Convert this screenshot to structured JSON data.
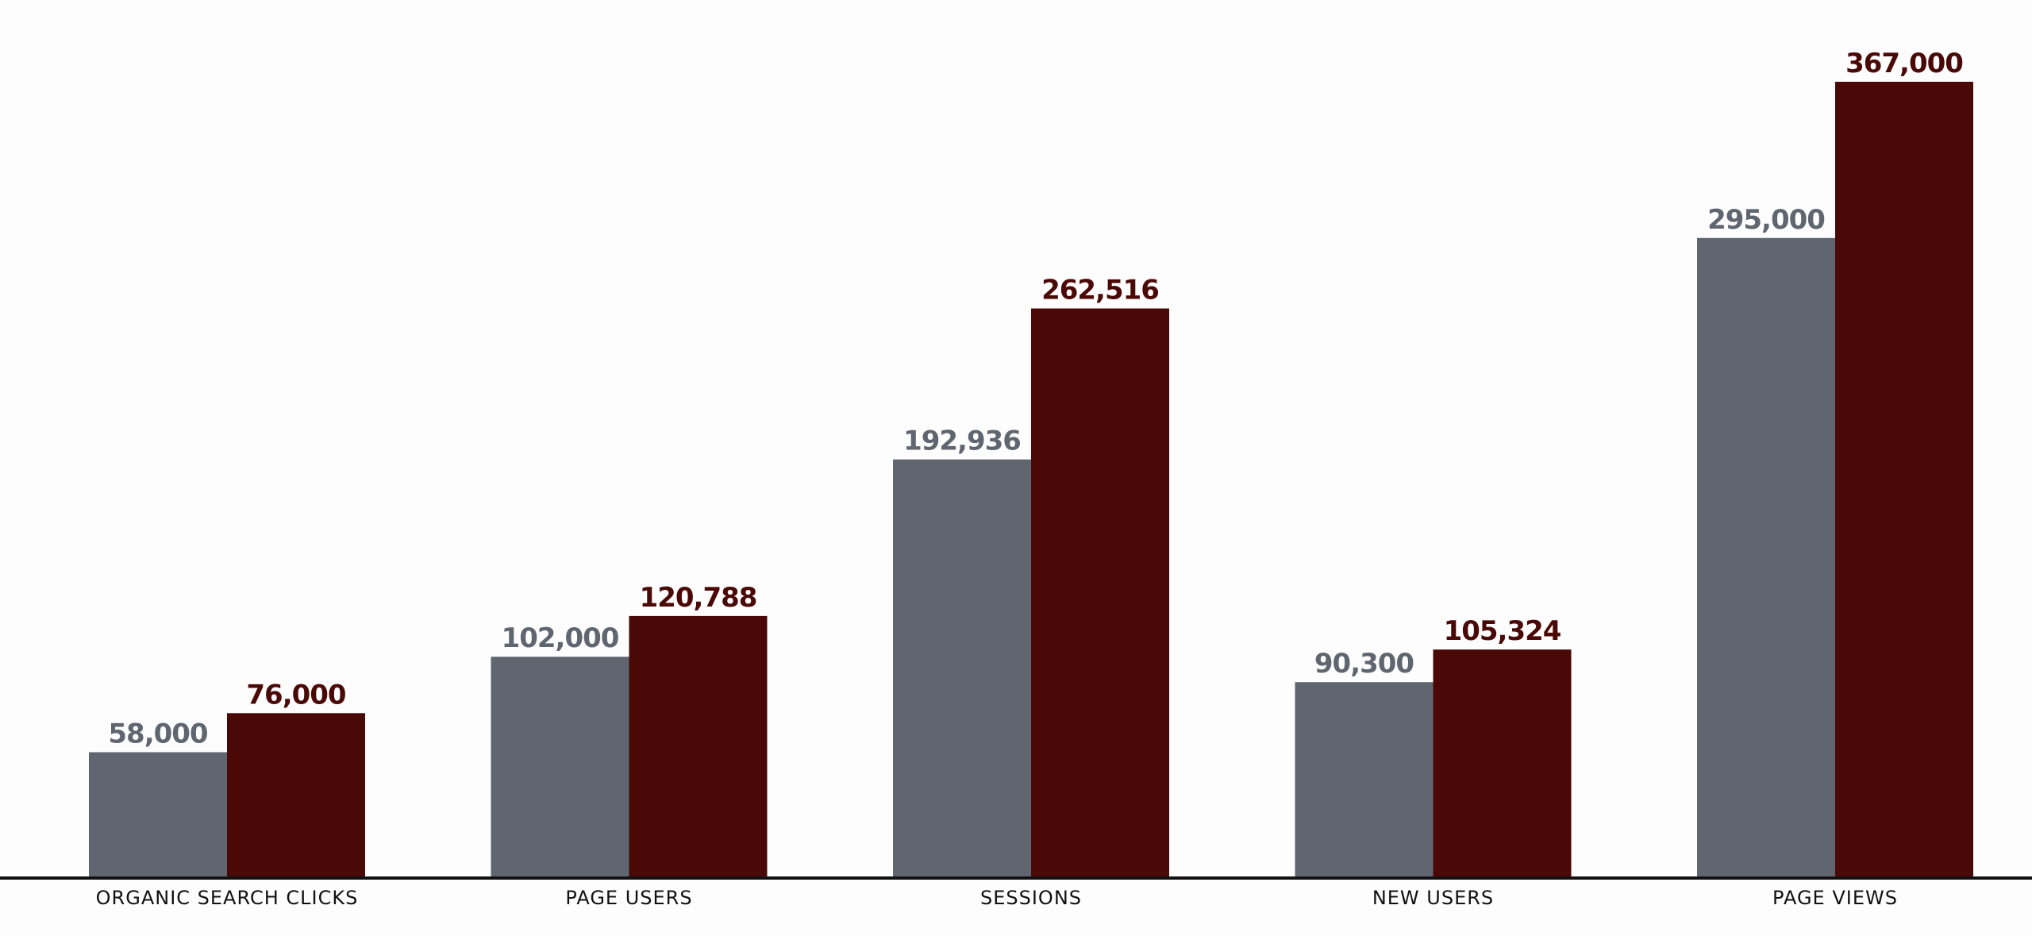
{
  "chart_data": {
    "type": "bar",
    "title": "",
    "xlabel": "",
    "ylabel": "",
    "categories": [
      "ORGANIC SEARCH CLICKS",
      "PAGE USERS",
      "SESSIONS",
      "NEW USERS",
      "PAGE VIEWS"
    ],
    "series": [
      {
        "values": [
          58000,
          102000,
          192936,
          90300,
          295000
        ],
        "labels": [
          "58,000",
          "102,000",
          "192,936",
          "90,300",
          "295,000"
        ],
        "color": "#5f6670",
        "label_color": "#5f6670"
      },
      {
        "values": [
          76000,
          120788,
          262516,
          105324,
          367000
        ],
        "labels": [
          "76,000",
          "120,788",
          "262,516",
          "105,324",
          "367,000"
        ],
        "color": "#4a0906",
        "label_color": "#4a0906"
      }
    ],
    "ylim": [
      0,
      367000
    ],
    "grid": false,
    "legend": "none",
    "baseline_color": "#111111"
  }
}
